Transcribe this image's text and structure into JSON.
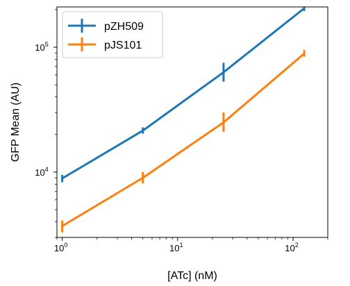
{
  "chart_data": {
    "type": "line",
    "xlabel": "[ATc] (nM)",
    "ylabel": "GFP Mean (AU)",
    "xscale": "log",
    "yscale": "log",
    "xlim": [
      0.9,
      200
    ],
    "ylim": [
      3000,
      210000
    ],
    "grid": false,
    "legend_position": "top-left",
    "x_ticks": [
      {
        "value": 1,
        "base": "10",
        "exp": "0"
      },
      {
        "value": 10,
        "base": "10",
        "exp": "1"
      },
      {
        "value": 100,
        "base": "10",
        "exp": "2"
      }
    ],
    "y_ticks": [
      {
        "value": 10000,
        "base": "10",
        "exp": "4"
      },
      {
        "value": 100000,
        "base": "10",
        "exp": "5"
      }
    ],
    "series": [
      {
        "name": "pZH509",
        "color": "#1f77b4",
        "x": [
          1,
          5,
          25,
          125
        ],
        "y": [
          8900,
          21500,
          63000,
          205000
        ],
        "y_err_low": [
          8300,
          20300,
          53000,
          195000
        ],
        "y_err_high": [
          9500,
          22800,
          75000,
          215000
        ]
      },
      {
        "name": "pJS101",
        "color": "#ff7f0e",
        "x": [
          1,
          5,
          25,
          125
        ],
        "y": [
          3700,
          9000,
          25000,
          89000
        ],
        "y_err_low": [
          3300,
          8100,
          21000,
          84000
        ],
        "y_err_high": [
          4100,
          10000,
          30000,
          95000
        ]
      }
    ]
  }
}
